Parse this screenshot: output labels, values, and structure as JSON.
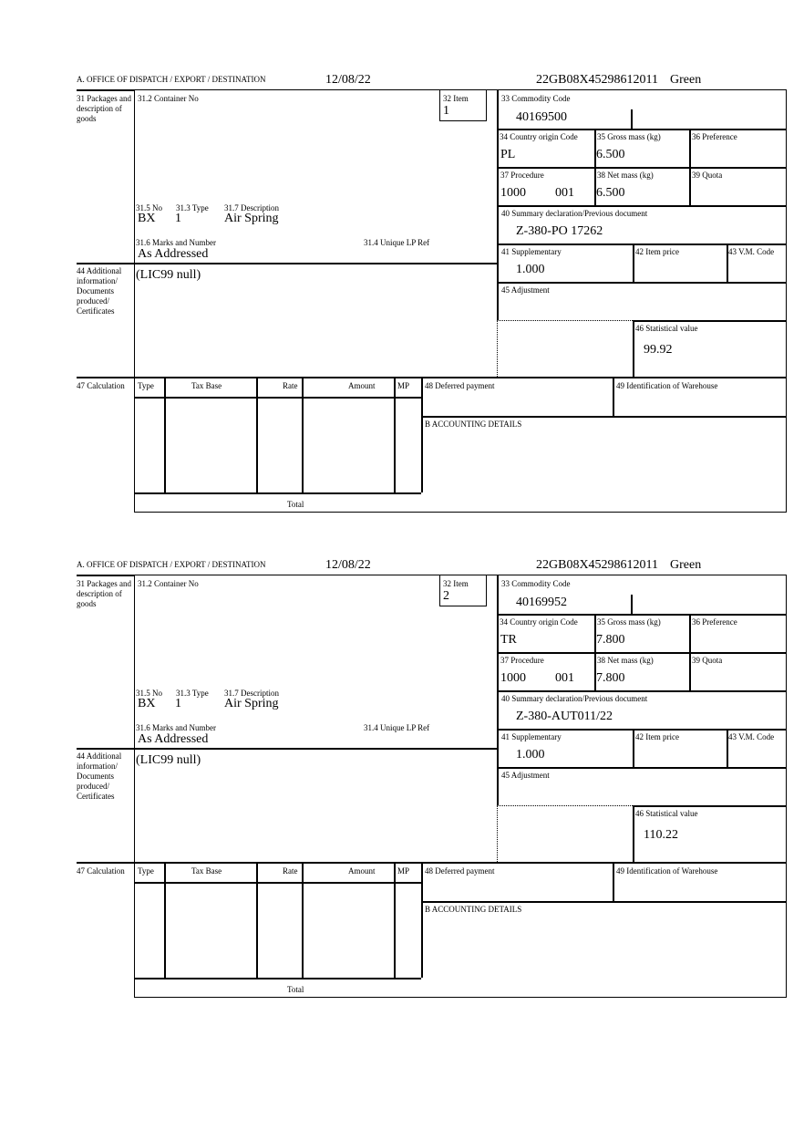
{
  "labels": {
    "office": "A.  OFFICE OF DISPATCH / EXPORT / DESTINATION",
    "packages": "31 Packages and description of goods",
    "container": "31.2 Container No",
    "item": "32 Item",
    "no": "31.5 No",
    "type31": "31.3 Type",
    "desc": "31.7 Description",
    "marks": "31.6 Marks and Number",
    "lpref": "31.4 Unique LP Ref",
    "commodity": "33 Commodity Code",
    "country": "34 Country origin Code",
    "gross": "35 Gross mass (kg)",
    "preference": "36 Preference",
    "procedure": "37 Procedure",
    "net": "38 Net mass (kg)",
    "quota": "39 Quota",
    "summary": "40 Summary declaration/Previous document",
    "supplementary": "41 Supplementary",
    "item_price": "42 Item price",
    "vm_code": "43 V.M. Code",
    "additional": "44 Additional information/ Documents produced/ Certificates",
    "adjustment": "45 Adjustment",
    "statistical": "46 Statistical value",
    "calculation": "47 Calculation",
    "col_type": "Type",
    "col_taxbase": "Tax Base",
    "col_rate": "Rate",
    "col_amount": "Amount",
    "col_mp": "MP",
    "deferred": "48 Deferred payment",
    "warehouse": "49 Identification of Warehouse",
    "accounting": "B ACCOUNTING DETAILS",
    "total": "Total"
  },
  "forms": [
    {
      "date": "12/08/22",
      "reference": "22GB08X45298612011",
      "route": "Green",
      "item": "1",
      "no": "BX",
      "type": "1",
      "description": "Air Spring",
      "marks": "As Addressed",
      "commodity": "40169500",
      "country": "PL",
      "gross": "6.500",
      "procedure": "1000",
      "procedure_add": "001",
      "net": "6.500",
      "summary": "Z-380-PO 17262",
      "supplementary": "1.000",
      "additional": "(LIC99 null)",
      "statistical": "99.92"
    },
    {
      "date": "12/08/22",
      "reference": "22GB08X45298612011",
      "route": "Green",
      "item": "2",
      "no": "BX",
      "type": "1",
      "description": "Air Spring",
      "marks": "As Addressed",
      "commodity": "40169952",
      "country": "TR",
      "gross": "7.800",
      "procedure": "1000",
      "procedure_add": "001",
      "net": "7.800",
      "summary": "Z-380-AUT011/22",
      "supplementary": "1.000",
      "additional": "(LIC99 null)",
      "statistical": "110.22"
    }
  ]
}
